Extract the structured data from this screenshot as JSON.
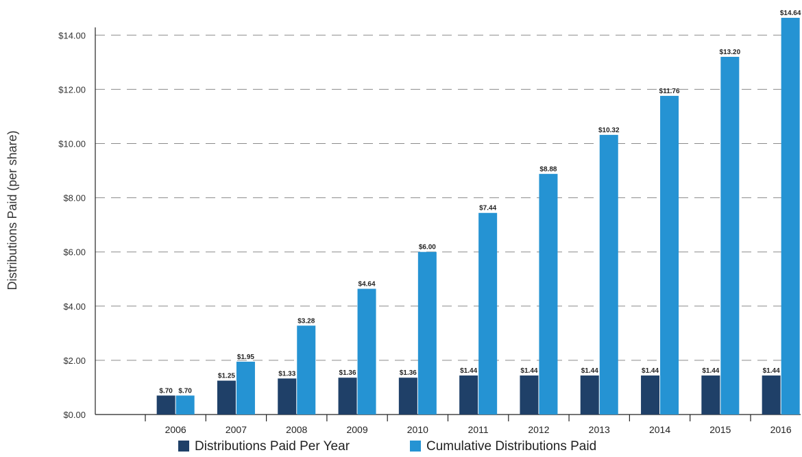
{
  "chart_data": {
    "type": "bar",
    "title": "",
    "xlabel": "",
    "ylabel": "Distributions Paid (per share)",
    "ylim": [
      0,
      14.64
    ],
    "yticks": [
      0,
      2,
      4,
      6,
      8,
      10,
      12,
      14
    ],
    "ytick_labels": [
      "$0.00",
      "$2.00",
      "$4.00",
      "$6.00",
      "$8.00",
      "$10.00",
      "$12.00",
      "$14.00"
    ],
    "grid": true,
    "legend_position": "bottom",
    "categories": [
      "2006",
      "2007",
      "2008",
      "2009",
      "2010",
      "2011",
      "2012",
      "2013",
      "2014",
      "2015",
      "2016"
    ],
    "series": [
      {
        "name": "Distributions Paid Per Year",
        "color": "#1f4068",
        "values": [
          0.7,
          1.25,
          1.33,
          1.36,
          1.36,
          1.44,
          1.44,
          1.44,
          1.44,
          1.44,
          1.44
        ],
        "labels": [
          "$.70",
          "$1.25",
          "$1.33",
          "$1.36",
          "$1.36",
          "$1.44",
          "$1.44",
          "$1.44",
          "$1.44",
          "$1.44",
          "$1.44"
        ]
      },
      {
        "name": "Cumulative Distributions Paid",
        "color": "#2593d3",
        "values": [
          0.7,
          1.95,
          3.28,
          4.64,
          6.0,
          7.44,
          8.88,
          10.32,
          11.76,
          13.2,
          14.64
        ],
        "labels": [
          "$.70",
          "$1.95",
          "$3.28",
          "$4.64",
          "$6.00",
          "$7.44",
          "$8.88",
          "$10.32",
          "$11.76",
          "$13.20",
          "$14.64"
        ]
      }
    ]
  }
}
